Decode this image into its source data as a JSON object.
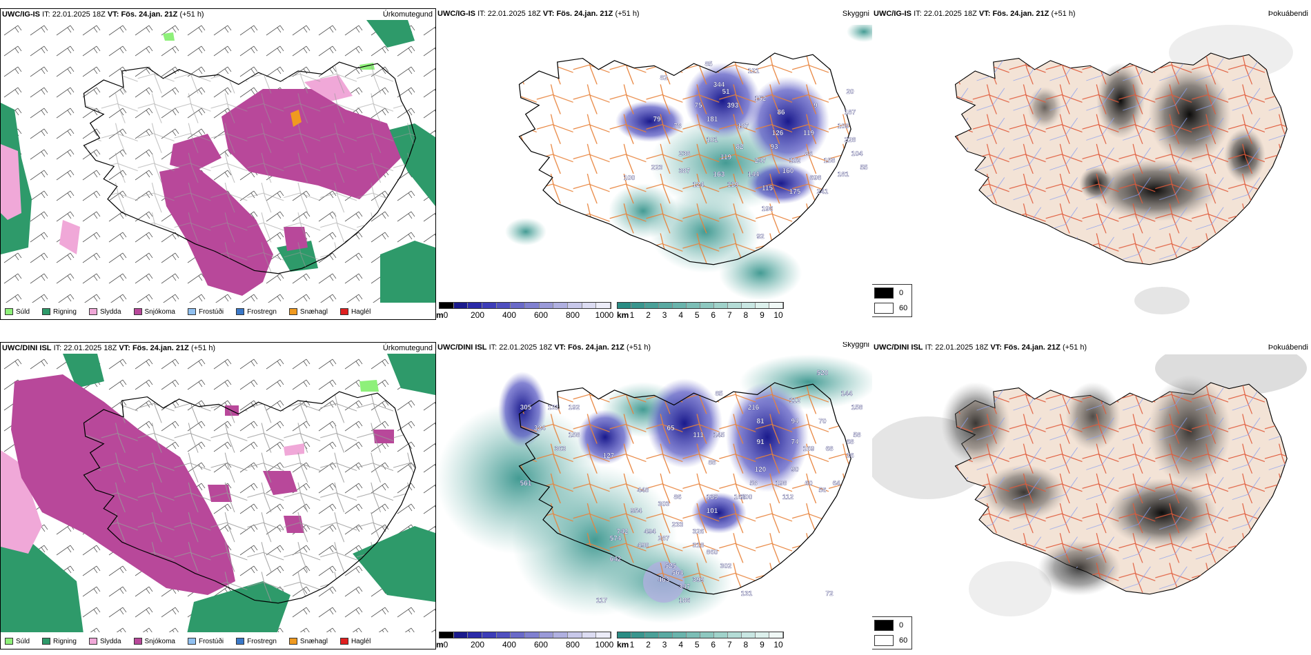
{
  "rows": [
    {
      "model": "UWC/IG-IS",
      "it_label": "IT:",
      "it_value": "22.01.2025 18Z",
      "vt_label": "VT:",
      "vt_value": "Fös. 24.jan. 21Z",
      "lead": "(+51 h)",
      "visibility_labels": [
        "85",
        "121",
        "82",
        "51",
        "152",
        "75",
        "86",
        "9",
        "187",
        "79",
        "78",
        "181",
        "187",
        "126",
        "119",
        "109",
        "101",
        "82",
        "93",
        "88",
        "228",
        "238",
        "119",
        "247",
        "102",
        "158",
        "104",
        "223",
        "387",
        "163",
        "144",
        "160",
        "698",
        "181",
        "100",
        "124",
        "119",
        "115",
        "175",
        "241",
        "196",
        "92",
        "393",
        "344",
        "55",
        "20"
      ]
    },
    {
      "model": "UWC/DINI ISL",
      "it_label": "IT:",
      "it_value": "22.01.2025 18Z",
      "vt_label": "VT:",
      "vt_value": "Fös. 24.jan. 21Z",
      "lead": "(+51 h)",
      "visibility_labels": [
        "520",
        "144",
        "158",
        "85",
        "216",
        "112",
        "305",
        "131",
        "192",
        "81",
        "94",
        "70",
        "58",
        "324",
        "91",
        "74",
        "68",
        "158",
        "65",
        "111",
        "145",
        "68",
        "169",
        "36",
        "363",
        "127",
        "88",
        "120",
        "90",
        "561",
        "58",
        "198",
        "60",
        "64",
        "448",
        "164",
        "139",
        "100",
        "112",
        "56",
        "86",
        "954",
        "303",
        "101",
        "742",
        "494",
        "233",
        "574",
        "490",
        "287",
        "318",
        "860",
        "642",
        "525",
        "302",
        "564",
        "463",
        "347",
        "399",
        "117",
        "186",
        "326",
        "131",
        "72"
      ]
    }
  ],
  "panels": {
    "precip_type": {
      "title": "Úrkomutegund",
      "legend": [
        {
          "label": "Súld",
          "color": "#8ef07a"
        },
        {
          "label": "Rigning",
          "color": "#2e9a6a"
        },
        {
          "label": "Slydda",
          "color": "#f0a8d8"
        },
        {
          "label": "Snjókoma",
          "color": "#b8489a"
        },
        {
          "label": "Frostúði",
          "color": "#90c0f0"
        },
        {
          "label": "Frostregn",
          "color": "#3a78c8"
        },
        {
          "label": "Snæhagl",
          "color": "#f09a20"
        },
        {
          "label": "Haglél",
          "color": "#e02020"
        }
      ]
    },
    "visibility": {
      "title": "Skyggni",
      "bar_m_unit": "m",
      "bar_m_ticks": [
        "0",
        "200",
        "400",
        "600",
        "800",
        "1000"
      ],
      "bar_m_colors": [
        "#000000",
        "#1a1a8c",
        "#2a2aa8",
        "#3d3db8",
        "#5050c0",
        "#6a6ac8",
        "#8080d0",
        "#9a9ad8",
        "#b0b0e0",
        "#c8c8ea",
        "#dcdcf2",
        "#ececf8"
      ],
      "bar_km_unit": "km",
      "bar_km_ticks": [
        "1",
        "2",
        "3",
        "4",
        "5",
        "6",
        "7",
        "8",
        "9",
        "10"
      ],
      "bar_km_colors": [
        "#2a8c84",
        "#3a968e",
        "#4aa098",
        "#5aaaa2",
        "#6ab4ac",
        "#7cbeb6",
        "#8ec8c0",
        "#a0d2ca",
        "#b4dcd6",
        "#c8e6e2",
        "#dcf0ec",
        "#f0f8f6"
      ]
    },
    "fog": {
      "title": "Þokuábendi",
      "legend": [
        {
          "label": "0",
          "color": "#000000"
        },
        {
          "label": "60",
          "color": "#ffffff"
        }
      ]
    }
  },
  "colors": {
    "snow": "#b8489a",
    "sleet": "#f0a8d8",
    "rain": "#2e9a6a",
    "drizzle": "#8ef07a",
    "vis_blue": "#2a2aa0",
    "vis_teal": "#4aa098",
    "roads": "#e8823a",
    "fog_land": "#f3e3d6"
  }
}
